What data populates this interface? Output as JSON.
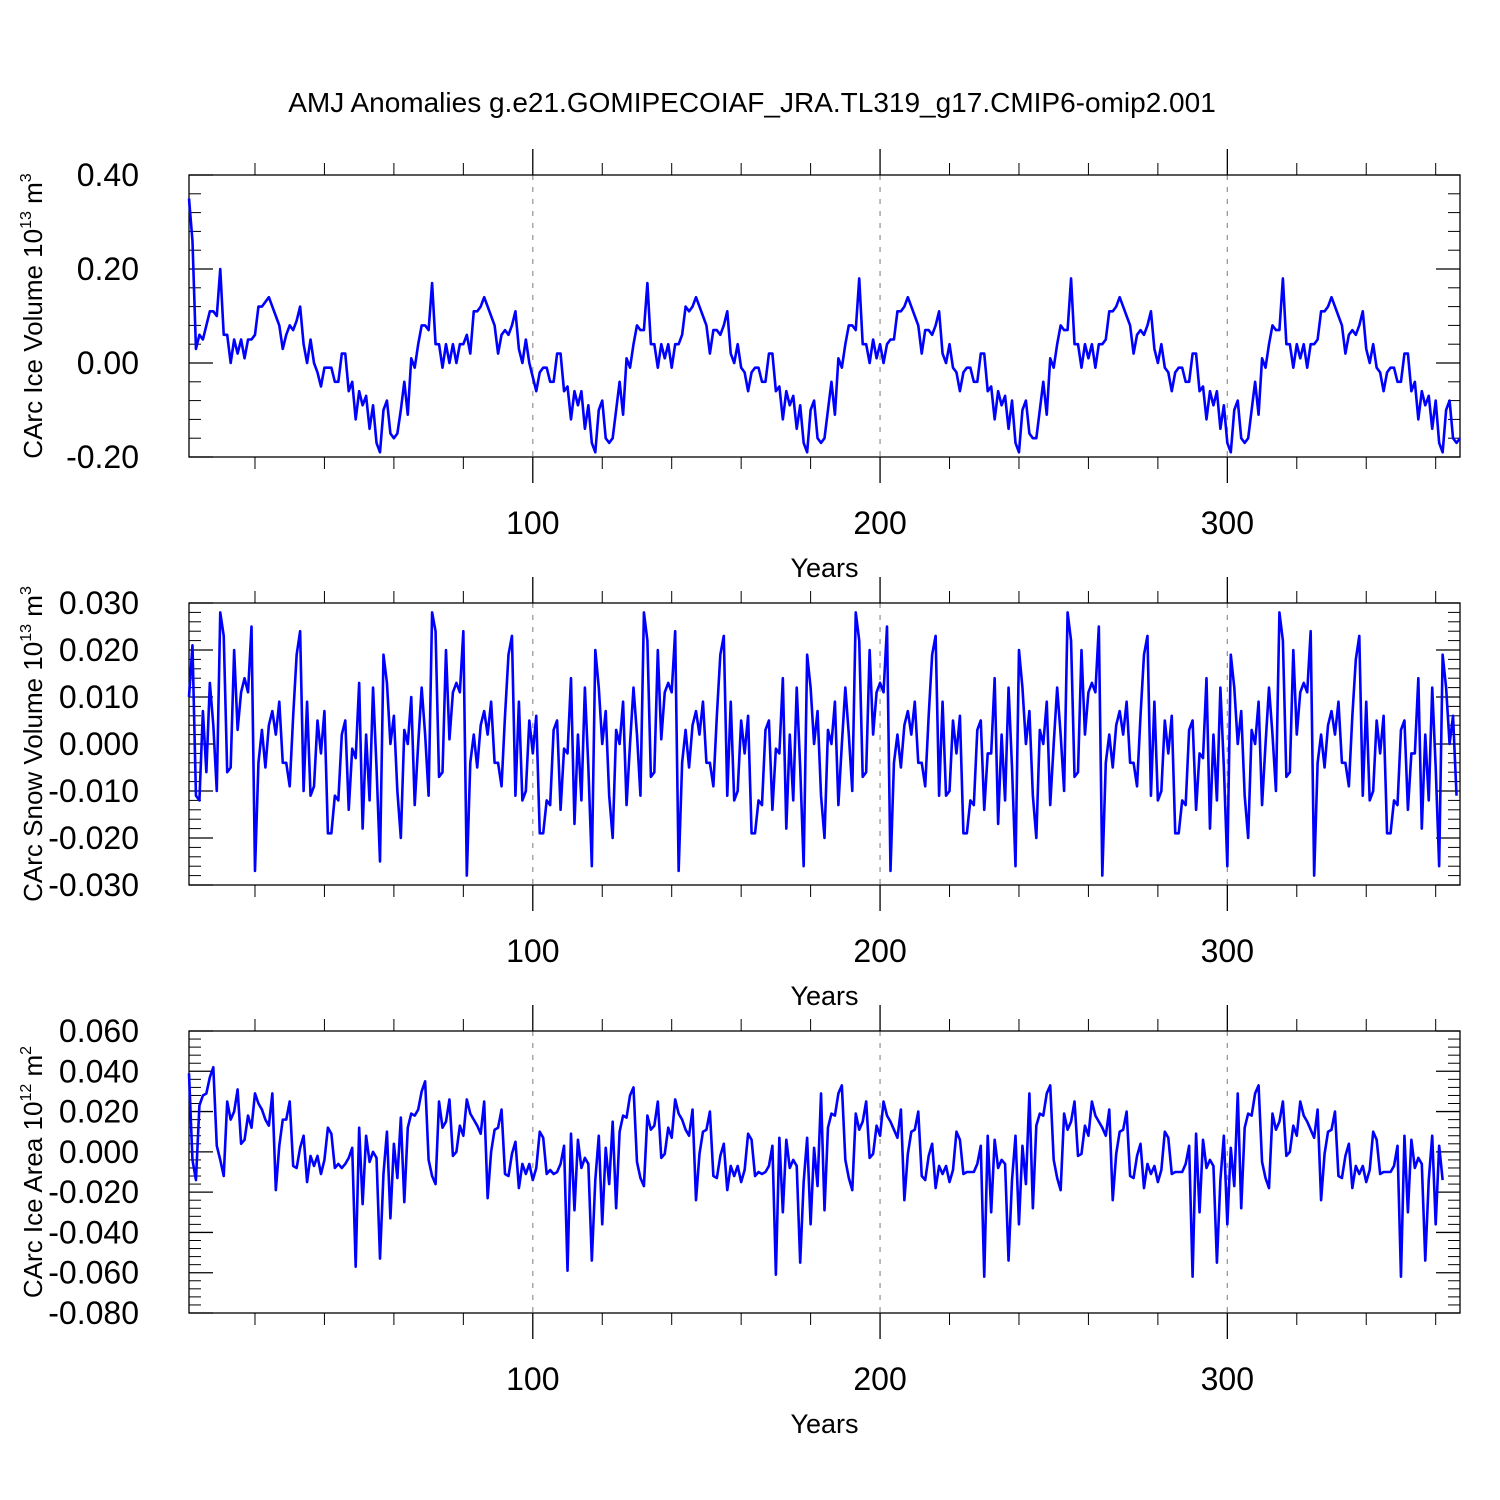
{
  "title": "AMJ Anomalies g.e21.GOMIPECOIAF_JRA.TL319_g17.CMIP6-omip2.001",
  "chart_data": [
    {
      "type": "line",
      "title": "AMJ Anomalies g.e21.GOMIPECOIAF_JRA.TL319_g17.CMIP6-omip2.001",
      "ylabel": "CArc Ice Volume 10",
      "ylabel_exp": "13",
      "ylabel_unit": " m",
      "ylabel_unit_exp": "3",
      "xlabel": "Years",
      "xlim": [
        1,
        367
      ],
      "ylim": [
        -0.2,
        0.4
      ],
      "xticks": [
        100,
        200,
        300
      ],
      "xtick_labels": [
        "100",
        "200",
        "300"
      ],
      "yticks": [
        -0.2,
        0.0,
        0.2,
        0.4
      ],
      "ytick_labels": [
        "-0.20",
        "0.00",
        "0.20",
        "0.40"
      ],
      "grid_x": [
        100,
        200,
        300
      ],
      "color": "#0000ff",
      "x_start": 1,
      "values": [
        0.35,
        0.26,
        0.03,
        0.06,
        0.05,
        0.08,
        0.11,
        0.11,
        0.1,
        0.2,
        0.06,
        0.06,
        0.0,
        0.05,
        0.02,
        0.05,
        0.01,
        0.05,
        0.05,
        0.06,
        0.12,
        0.12,
        0.13,
        0.14,
        0.12,
        0.1,
        0.08,
        0.03,
        0.06,
        0.08,
        0.07,
        0.09,
        0.12,
        0.04,
        0.0,
        0.05,
        0.0,
        -0.02,
        -0.05,
        -0.01,
        -0.01,
        -0.01,
        -0.04,
        -0.04,
        0.02,
        0.02,
        -0.06,
        -0.04,
        -0.12,
        -0.06,
        -0.09,
        -0.07,
        -0.14,
        -0.09,
        -0.17,
        -0.19,
        -0.1,
        -0.08,
        -0.15,
        -0.16,
        -0.15,
        -0.1,
        -0.04,
        -0.11,
        0.01,
        -0.01,
        0.04,
        0.08,
        0.08,
        0.07,
        0.17,
        0.04,
        0.04,
        -0.01,
        0.04,
        0.0,
        0.04,
        0.0,
        0.04,
        0.04,
        0.06,
        0.02,
        0.11,
        0.11,
        0.12,
        0.14,
        0.12,
        0.1,
        0.08,
        0.02,
        0.06,
        0.07,
        0.06,
        0.08,
        0.11,
        0.03,
        0.0,
        0.05,
        0.0,
        -0.03,
        -0.06,
        -0.02,
        -0.01,
        -0.01,
        -0.04,
        -0.04,
        0.02,
        0.02,
        -0.06,
        -0.05,
        -0.12,
        -0.06,
        -0.09,
        -0.06,
        -0.14,
        -0.09,
        -0.17,
        -0.19,
        -0.1,
        -0.08,
        -0.16,
        -0.17,
        -0.16,
        -0.1,
        -0.04,
        -0.11,
        0.01,
        -0.01,
        0.04,
        0.08,
        0.07,
        0.07,
        0.17,
        0.04,
        0.04,
        -0.01,
        0.04,
        0.01,
        0.04,
        -0.01,
        0.04,
        0.04,
        0.06,
        0.12,
        0.11,
        0.12,
        0.14,
        0.12,
        0.1,
        0.08,
        0.02,
        0.07,
        0.07,
        0.06,
        0.08,
        0.11,
        0.02,
        0.0,
        0.04,
        -0.01,
        -0.02,
        -0.06,
        -0.02,
        -0.01,
        -0.01,
        -0.04,
        -0.04,
        0.02,
        0.02,
        -0.06,
        -0.05,
        -0.12,
        -0.06,
        -0.09,
        -0.07,
        -0.14,
        -0.09,
        -0.17,
        -0.19,
        -0.1,
        -0.08,
        -0.16,
        -0.17,
        -0.16,
        -0.1,
        -0.04,
        -0.11,
        0.01,
        -0.01,
        0.04,
        0.08,
        0.08,
        0.07,
        0.18,
        0.04,
        0.04,
        0.0,
        0.05,
        0.01,
        0.04,
        0.0,
        0.04,
        0.05,
        0.05,
        0.11,
        0.11,
        0.12,
        0.14,
        0.12,
        0.1,
        0.08,
        0.02,
        0.07,
        0.07,
        0.06,
        0.08,
        0.11,
        0.02,
        0.0,
        0.04,
        -0.01,
        -0.02,
        -0.06,
        -0.02,
        -0.01,
        -0.01,
        -0.04,
        -0.04,
        0.02,
        0.02,
        -0.06,
        -0.05,
        -0.12,
        -0.06,
        -0.09,
        -0.07,
        -0.14,
        -0.08,
        -0.17,
        -0.19,
        -0.1,
        -0.08,
        -0.15,
        -0.16,
        -0.16,
        -0.1,
        -0.04,
        -0.11,
        0.01,
        -0.01,
        0.04,
        0.08,
        0.07,
        0.07,
        0.18,
        0.04,
        0.04,
        -0.01,
        0.04,
        0.01,
        0.04,
        -0.01,
        0.04,
        0.04,
        0.05,
        0.11,
        0.11,
        0.12,
        0.14,
        0.12,
        0.1,
        0.08,
        0.02,
        0.06,
        0.07,
        0.06,
        0.08,
        0.11,
        0.03,
        0.0,
        0.04,
        -0.01,
        -0.02,
        -0.06,
        -0.02,
        -0.01,
        -0.01,
        -0.04,
        -0.04,
        0.02,
        0.02,
        -0.06,
        -0.05,
        -0.12,
        -0.06,
        -0.09,
        -0.06,
        -0.14,
        -0.09,
        -0.17,
        -0.19,
        -0.1,
        -0.08,
        -0.16,
        -0.17,
        -0.16,
        -0.1,
        -0.04,
        -0.11,
        0.01,
        -0.01,
        0.04,
        0.08,
        0.07,
        0.07,
        0.18,
        0.04,
        0.04,
        -0.01,
        0.04,
        0.01,
        0.04,
        -0.01,
        0.04,
        0.04,
        0.05,
        0.11,
        0.11,
        0.12,
        0.14,
        0.12,
        0.1,
        0.08,
        0.02,
        0.06,
        0.07,
        0.06,
        0.08,
        0.11,
        0.03,
        0.0,
        0.04,
        -0.01,
        -0.02,
        -0.06,
        -0.02,
        -0.01,
        -0.01,
        -0.04,
        -0.04,
        0.02,
        0.02,
        -0.06,
        -0.04,
        -0.12,
        -0.06,
        -0.09,
        -0.07,
        -0.14,
        -0.08,
        -0.17,
        -0.19,
        -0.1,
        -0.08,
        -0.16,
        -0.17,
        -0.16
      ]
    },
    {
      "type": "line",
      "ylabel": "CArc Snow Volume 10",
      "ylabel_exp": "13",
      "ylabel_unit": " m",
      "ylabel_unit_exp": "3",
      "xlabel": "Years",
      "xlim": [
        1,
        367
      ],
      "ylim": [
        -0.03,
        0.03
      ],
      "xticks": [
        100,
        200,
        300
      ],
      "xtick_labels": [
        "100",
        "200",
        "300"
      ],
      "yticks": [
        -0.03,
        -0.02,
        -0.01,
        0.0,
        0.01,
        0.02,
        0.03
      ],
      "ytick_labels": [
        "-0.030",
        "-0.020",
        "-0.010",
        "0.000",
        "0.010",
        "0.020",
        "0.030"
      ],
      "grid_x": [
        100,
        200,
        300
      ],
      "color": "#0000ff",
      "x_start": 1,
      "values": [
        0.01,
        0.021,
        -0.011,
        -0.012,
        0.007,
        -0.006,
        0.013,
        0.004,
        -0.01,
        0.028,
        0.023,
        -0.006,
        -0.005,
        0.02,
        0.003,
        0.011,
        0.014,
        0.011,
        0.025,
        -0.027,
        -0.004,
        0.003,
        -0.005,
        0.004,
        0.007,
        0.002,
        0.009,
        -0.004,
        -0.004,
        -0.009,
        0.006,
        0.019,
        0.024,
        -0.01,
        0.009,
        -0.011,
        -0.009,
        0.005,
        -0.002,
        0.007,
        -0.019,
        -0.019,
        -0.011,
        -0.012,
        0.002,
        0.005,
        -0.014,
        -0.001,
        -0.003,
        0.013,
        -0.018,
        0.002,
        -0.012,
        0.012,
        -0.005,
        -0.025,
        0.019,
        0.013,
        0.0,
        0.006,
        -0.01,
        -0.02,
        0.003,
        0.0,
        0.01,
        -0.013,
        0.0,
        0.012,
        0.002,
        -0.011,
        0.028,
        0.024,
        -0.007,
        -0.006,
        0.02,
        0.001,
        0.011,
        0.013,
        0.011,
        0.024,
        -0.028,
        -0.004,
        0.002,
        -0.005,
        0.004,
        0.007,
        0.002,
        0.009,
        -0.004,
        -0.004,
        -0.009,
        0.006,
        0.019,
        0.023,
        -0.011,
        0.009,
        -0.012,
        -0.01,
        0.005,
        -0.002,
        0.006,
        -0.019,
        -0.019,
        -0.012,
        -0.013,
        0.003,
        0.005,
        -0.014,
        -0.001,
        -0.002,
        0.014,
        -0.017,
        0.002,
        -0.012,
        0.012,
        -0.005,
        -0.026,
        0.02,
        0.012,
        0.0,
        0.007,
        -0.011,
        -0.02,
        0.003,
        0.0,
        0.009,
        -0.013,
        0.0,
        0.012,
        0.002,
        -0.011,
        0.028,
        0.022,
        -0.007,
        -0.006,
        0.02,
        0.001,
        0.011,
        0.013,
        0.011,
        0.024,
        -0.027,
        -0.004,
        0.003,
        -0.005,
        0.004,
        0.007,
        0.002,
        0.009,
        -0.004,
        -0.004,
        -0.009,
        0.006,
        0.019,
        0.023,
        -0.011,
        0.009,
        -0.012,
        -0.01,
        0.005,
        -0.002,
        0.006,
        -0.019,
        -0.019,
        -0.012,
        -0.013,
        0.003,
        0.005,
        -0.014,
        -0.001,
        -0.002,
        0.014,
        -0.018,
        0.002,
        -0.012,
        0.012,
        -0.005,
        -0.026,
        0.019,
        0.012,
        0.0,
        0.007,
        -0.011,
        -0.02,
        0.003,
        0.0,
        0.009,
        -0.013,
        0.0,
        0.012,
        0.002,
        -0.01,
        0.028,
        0.022,
        -0.007,
        -0.006,
        0.02,
        0.002,
        0.011,
        0.013,
        0.011,
        0.025,
        -0.027,
        -0.004,
        0.002,
        -0.005,
        0.004,
        0.007,
        0.002,
        0.009,
        -0.004,
        -0.004,
        -0.009,
        0.006,
        0.019,
        0.023,
        -0.011,
        0.009,
        -0.011,
        -0.01,
        0.005,
        -0.002,
        0.006,
        -0.019,
        -0.019,
        -0.012,
        -0.013,
        0.003,
        0.005,
        -0.014,
        -0.002,
        -0.002,
        0.014,
        -0.017,
        0.002,
        -0.012,
        0.012,
        -0.005,
        -0.026,
        0.02,
        0.012,
        0.0,
        0.007,
        -0.011,
        -0.02,
        0.003,
        0.0,
        0.009,
        -0.013,
        0.0,
        0.012,
        0.002,
        -0.01,
        0.028,
        0.022,
        -0.007,
        -0.006,
        0.02,
        0.002,
        0.011,
        0.013,
        0.011,
        0.025,
        -0.028,
        -0.004,
        0.002,
        -0.005,
        0.004,
        0.007,
        0.002,
        0.009,
        -0.004,
        -0.004,
        -0.009,
        0.006,
        0.019,
        0.023,
        -0.011,
        0.009,
        -0.012,
        -0.01,
        0.005,
        -0.002,
        0.006,
        -0.019,
        -0.019,
        -0.012,
        -0.013,
        0.003,
        0.005,
        -0.014,
        -0.002,
        -0.003,
        0.014,
        -0.018,
        0.002,
        -0.012,
        0.012,
        -0.005,
        -0.026,
        0.019,
        0.012,
        0.0,
        0.007,
        -0.011,
        -0.02,
        0.003,
        0.0,
        0.009,
        -0.013,
        0.0,
        0.012,
        0.002,
        -0.01,
        0.028,
        0.022,
        -0.007,
        -0.006,
        0.02,
        0.002,
        0.011,
        0.013,
        0.011,
        0.024,
        -0.028,
        -0.004,
        0.002,
        -0.005,
        0.004,
        0.007,
        0.002,
        0.009,
        -0.004,
        -0.004,
        -0.009,
        0.006,
        0.018,
        0.023,
        -0.011,
        0.009,
        -0.012,
        -0.01,
        0.005,
        -0.002,
        0.006,
        -0.019,
        -0.019,
        -0.012,
        -0.013,
        0.003,
        0.005,
        -0.014,
        -0.002,
        -0.002,
        0.014,
        -0.018,
        0.002,
        -0.012,
        0.012,
        -0.005,
        -0.026,
        0.019,
        0.012,
        0.0,
        0.006,
        -0.011
      ]
    },
    {
      "type": "line",
      "ylabel": "CArc Ice Area 10",
      "ylabel_exp": "12",
      "ylabel_unit": " m",
      "ylabel_unit_exp": "2",
      "xlabel": "Years",
      "xlim": [
        1,
        367
      ],
      "ylim": [
        -0.08,
        0.06
      ],
      "xticks": [
        100,
        200,
        300
      ],
      "xtick_labels": [
        "100",
        "200",
        "300"
      ],
      "yticks": [
        -0.08,
        -0.06,
        -0.04,
        -0.02,
        0.0,
        0.02,
        0.04,
        0.06
      ],
      "ytick_labels": [
        "-0.080",
        "-0.060",
        "-0.040",
        "-0.020",
        "0.000",
        "0.020",
        "0.040",
        "0.060"
      ],
      "grid_x": [
        100,
        200,
        300
      ],
      "color": "#0000ff",
      "x_start": 1,
      "values": [
        0.039,
        -0.004,
        -0.014,
        0.023,
        0.028,
        0.029,
        0.037,
        0.042,
        0.003,
        -0.004,
        -0.012,
        0.025,
        0.016,
        0.02,
        0.031,
        0.004,
        0.006,
        0.018,
        0.012,
        0.029,
        0.024,
        0.021,
        0.016,
        0.013,
        0.029,
        -0.019,
        0.003,
        0.016,
        0.016,
        0.025,
        -0.007,
        -0.008,
        0.002,
        0.008,
        -0.015,
        -0.002,
        -0.007,
        -0.002,
        -0.011,
        -0.004,
        0.012,
        0.009,
        -0.008,
        -0.006,
        -0.008,
        -0.006,
        -0.003,
        0.002,
        -0.057,
        0.012,
        -0.026,
        0.008,
        -0.005,
        0.0,
        -0.003,
        -0.053,
        -0.011,
        0.01,
        -0.033,
        0.004,
        -0.013,
        0.017,
        -0.025,
        0.012,
        0.019,
        0.018,
        0.021,
        0.03,
        0.035,
        -0.004,
        -0.012,
        -0.016,
        0.025,
        0.012,
        0.015,
        0.026,
        -0.002,
        0.0,
        0.013,
        0.008,
        0.026,
        0.019,
        0.016,
        0.013,
        0.009,
        0.025,
        -0.023,
        0.0,
        0.011,
        0.012,
        0.021,
        -0.011,
        -0.012,
        -0.001,
        0.005,
        -0.018,
        -0.006,
        -0.011,
        -0.006,
        -0.014,
        -0.008,
        0.01,
        0.007,
        -0.011,
        -0.009,
        -0.011,
        -0.01,
        -0.006,
        0.003,
        -0.059,
        0.009,
        -0.029,
        0.006,
        -0.008,
        -0.003,
        -0.006,
        -0.054,
        -0.014,
        0.008,
        -0.036,
        0.002,
        -0.016,
        0.015,
        -0.028,
        0.01,
        0.018,
        0.017,
        0.028,
        0.032,
        -0.005,
        -0.013,
        -0.017,
        0.018,
        0.011,
        0.013,
        0.025,
        -0.003,
        -0.001,
        0.012,
        0.007,
        0.026,
        0.019,
        0.016,
        0.011,
        0.008,
        0.021,
        -0.024,
        -0.001,
        0.01,
        0.011,
        0.02,
        -0.012,
        -0.013,
        -0.002,
        0.004,
        -0.019,
        -0.007,
        -0.012,
        -0.007,
        -0.015,
        -0.009,
        0.009,
        0.006,
        -0.012,
        -0.01,
        -0.011,
        -0.01,
        -0.007,
        0.003,
        -0.061,
        0.007,
        -0.03,
        0.006,
        -0.008,
        -0.004,
        -0.007,
        -0.055,
        -0.015,
        0.007,
        -0.036,
        0.002,
        -0.017,
        0.029,
        -0.029,
        0.012,
        0.019,
        0.018,
        0.029,
        0.033,
        -0.004,
        -0.013,
        -0.019,
        0.019,
        0.011,
        0.015,
        0.025,
        -0.003,
        -0.001,
        0.013,
        0.008,
        0.025,
        0.018,
        0.015,
        0.011,
        0.007,
        0.021,
        -0.024,
        -0.001,
        0.01,
        0.011,
        0.02,
        -0.012,
        -0.014,
        -0.002,
        0.004,
        -0.018,
        -0.007,
        -0.011,
        -0.007,
        -0.015,
        -0.009,
        0.01,
        0.006,
        -0.011,
        -0.01,
        -0.01,
        -0.01,
        -0.006,
        0.003,
        -0.062,
        0.008,
        -0.03,
        0.006,
        -0.008,
        -0.004,
        -0.006,
        -0.054,
        -0.014,
        0.008,
        -0.036,
        0.003,
        -0.016,
        0.029,
        -0.028,
        0.013,
        0.019,
        0.018,
        0.029,
        0.033,
        -0.004,
        -0.013,
        -0.019,
        0.019,
        0.011,
        0.015,
        0.025,
        -0.002,
        -0.001,
        0.013,
        0.008,
        0.025,
        0.018,
        0.015,
        0.012,
        0.008,
        0.021,
        -0.024,
        -0.001,
        0.01,
        0.011,
        0.02,
        -0.012,
        -0.013,
        -0.002,
        0.004,
        -0.018,
        -0.006,
        -0.011,
        -0.007,
        -0.015,
        -0.009,
        0.01,
        0.007,
        -0.011,
        -0.01,
        -0.01,
        -0.01,
        -0.006,
        0.003,
        -0.062,
        0.009,
        -0.03,
        0.006,
        -0.008,
        -0.004,
        -0.007,
        -0.055,
        -0.014,
        0.008,
        -0.036,
        0.002,
        -0.017,
        0.029,
        -0.028,
        0.012,
        0.019,
        0.018,
        0.029,
        0.033,
        -0.005,
        -0.013,
        -0.018,
        0.019,
        0.011,
        0.015,
        0.025,
        -0.002,
        0.0,
        0.013,
        0.008,
        0.025,
        0.018,
        0.015,
        0.011,
        0.007,
        0.021,
        -0.024,
        -0.001,
        0.01,
        0.011,
        0.02,
        -0.012,
        -0.013,
        -0.002,
        0.004,
        -0.018,
        -0.007,
        -0.011,
        -0.007,
        -0.015,
        -0.009,
        0.01,
        0.006,
        -0.011,
        -0.01,
        -0.01,
        -0.01,
        -0.007,
        0.003,
        -0.062,
        0.008,
        -0.03,
        0.006,
        -0.008,
        -0.003,
        -0.006,
        -0.054,
        -0.014,
        0.008,
        -0.036,
        0.003,
        -0.014
      ]
    }
  ]
}
